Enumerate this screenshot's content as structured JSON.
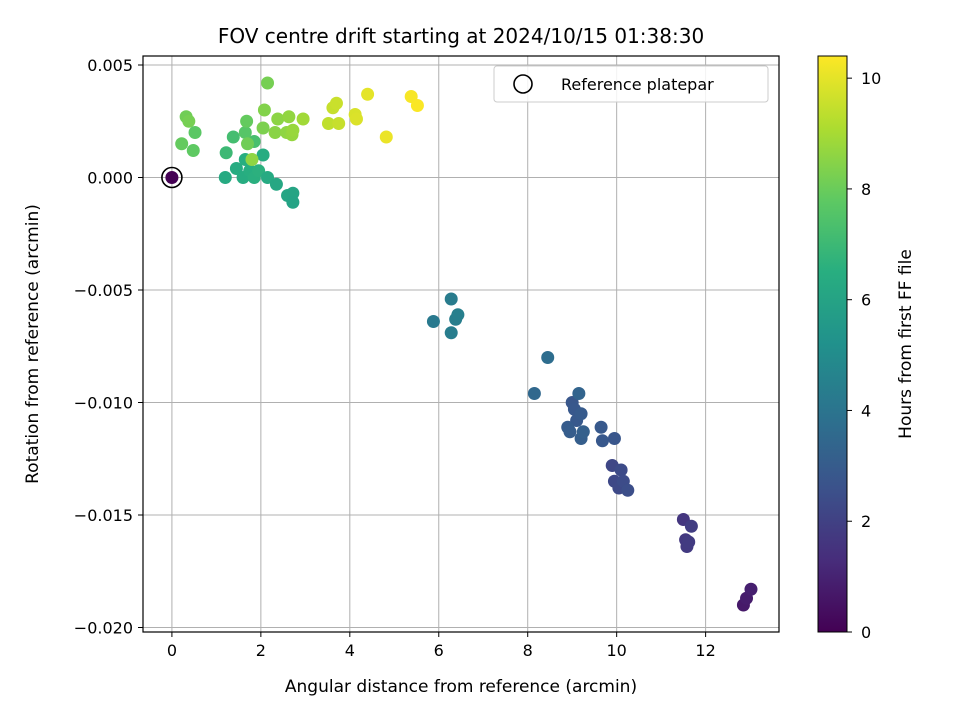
{
  "chart_data": {
    "type": "scatter",
    "title": "FOV centre drift starting at 2024/10/15 01:38:30",
    "xlabel": "Angular distance from reference (arcmin)",
    "ylabel": "Rotation from reference (arcmin)",
    "xlim": [
      -0.65,
      13.65
    ],
    "ylim": [
      -0.0202,
      0.0054
    ],
    "xticks": [
      0,
      2,
      4,
      6,
      8,
      10,
      12
    ],
    "xtick_labels": [
      "0",
      "2",
      "4",
      "6",
      "8",
      "10",
      "12"
    ],
    "yticks": [
      0.005,
      0.0,
      -0.005,
      -0.01,
      -0.015,
      -0.02
    ],
    "ytick_labels": [
      "0.005",
      "0.000",
      "−0.005",
      "−0.010",
      "−0.015",
      "−0.020"
    ],
    "grid": true,
    "legend": {
      "position": "top-right",
      "label": "Reference platepar"
    },
    "colorbar": {
      "label": "Hours from first FF file",
      "min": 0,
      "max": 10.4,
      "ticks": [
        0,
        2,
        4,
        6,
        8,
        10
      ],
      "tick_labels": [
        "0",
        "2",
        "4",
        "6",
        "8",
        "10"
      ],
      "colormap": "viridis"
    },
    "reference_point": {
      "x": 0,
      "y": 0
    },
    "points": [
      {
        "x": 0.0,
        "y": 0.0,
        "c": 0.0
      },
      {
        "x": 12.85,
        "y": -0.019,
        "c": 0.7
      },
      {
        "x": 12.92,
        "y": -0.0187,
        "c": 0.8
      },
      {
        "x": 13.02,
        "y": -0.0183,
        "c": 0.9
      },
      {
        "x": 11.5,
        "y": -0.0152,
        "c": 1.6
      },
      {
        "x": 11.55,
        "y": -0.0161,
        "c": 1.7
      },
      {
        "x": 11.58,
        "y": -0.0164,
        "c": 1.75
      },
      {
        "x": 11.62,
        "y": -0.0162,
        "c": 1.8
      },
      {
        "x": 11.68,
        "y": -0.0155,
        "c": 1.85
      },
      {
        "x": 9.9,
        "y": -0.0128,
        "c": 2.2
      },
      {
        "x": 9.95,
        "y": -0.0135,
        "c": 2.25
      },
      {
        "x": 10.05,
        "y": -0.0138,
        "c": 2.3
      },
      {
        "x": 10.1,
        "y": -0.013,
        "c": 2.35
      },
      {
        "x": 10.15,
        "y": -0.0135,
        "c": 2.4
      },
      {
        "x": 10.25,
        "y": -0.0139,
        "c": 2.45
      },
      {
        "x": 9.0,
        "y": -0.01,
        "c": 2.8
      },
      {
        "x": 9.05,
        "y": -0.0103,
        "c": 2.85
      },
      {
        "x": 9.1,
        "y": -0.0108,
        "c": 2.9
      },
      {
        "x": 9.2,
        "y": -0.0105,
        "c": 2.95
      },
      {
        "x": 8.9,
        "y": -0.0111,
        "c": 3.0
      },
      {
        "x": 8.95,
        "y": -0.0113,
        "c": 3.05
      },
      {
        "x": 9.2,
        "y": -0.0116,
        "c": 3.1
      },
      {
        "x": 9.25,
        "y": -0.0113,
        "c": 3.15
      },
      {
        "x": 9.65,
        "y": -0.0111,
        "c": 2.9
      },
      {
        "x": 9.68,
        "y": -0.0117,
        "c": 2.85
      },
      {
        "x": 9.95,
        "y": -0.0116,
        "c": 2.75
      },
      {
        "x": 9.15,
        "y": -0.0096,
        "c": 3.35
      },
      {
        "x": 8.15,
        "y": -0.0096,
        "c": 3.5
      },
      {
        "x": 8.45,
        "y": -0.008,
        "c": 3.7
      },
      {
        "x": 5.88,
        "y": -0.0064,
        "c": 4.2
      },
      {
        "x": 6.28,
        "y": -0.0054,
        "c": 4.3
      },
      {
        "x": 6.28,
        "y": -0.0069,
        "c": 4.35
      },
      {
        "x": 6.38,
        "y": -0.0063,
        "c": 4.4
      },
      {
        "x": 6.43,
        "y": -0.0061,
        "c": 4.45
      },
      {
        "x": 1.2,
        "y": 0.0,
        "c": 6.3
      },
      {
        "x": 1.45,
        "y": 0.0004,
        "c": 6.4
      },
      {
        "x": 1.6,
        "y": 0.0,
        "c": 6.4
      },
      {
        "x": 1.65,
        "y": 0.0008,
        "c": 6.5
      },
      {
        "x": 1.75,
        "y": 0.0003,
        "c": 6.5
      },
      {
        "x": 1.85,
        "y": 0.0,
        "c": 6.55
      },
      {
        "x": 1.95,
        "y": 0.0003,
        "c": 6.6
      },
      {
        "x": 2.05,
        "y": 0.001,
        "c": 6.4
      },
      {
        "x": 2.15,
        "y": 0.0,
        "c": 6.3
      },
      {
        "x": 2.35,
        "y": -0.0003,
        "c": 6.2
      },
      {
        "x": 2.6,
        "y": -0.0008,
        "c": 6.1
      },
      {
        "x": 2.72,
        "y": -0.0007,
        "c": 6.05
      },
      {
        "x": 2.72,
        "y": -0.0011,
        "c": 6.0
      },
      {
        "x": 1.22,
        "y": 0.0011,
        "c": 7.0
      },
      {
        "x": 1.38,
        "y": 0.0018,
        "c": 7.2
      },
      {
        "x": 1.85,
        "y": 0.0016,
        "c": 7.3
      },
      {
        "x": 1.65,
        "y": 0.002,
        "c": 7.6
      },
      {
        "x": 1.68,
        "y": 0.0025,
        "c": 7.9
      },
      {
        "x": 1.7,
        "y": 0.0015,
        "c": 8.1
      },
      {
        "x": 1.8,
        "y": 0.0008,
        "c": 8.6
      },
      {
        "x": 0.22,
        "y": 0.0015,
        "c": 7.9
      },
      {
        "x": 0.32,
        "y": 0.0027,
        "c": 8.1
      },
      {
        "x": 0.38,
        "y": 0.0025,
        "c": 8.2
      },
      {
        "x": 0.48,
        "y": 0.0012,
        "c": 7.8
      },
      {
        "x": 0.52,
        "y": 0.002,
        "c": 7.7
      },
      {
        "x": 2.05,
        "y": 0.0022,
        "c": 8.3
      },
      {
        "x": 2.08,
        "y": 0.003,
        "c": 8.4
      },
      {
        "x": 2.15,
        "y": 0.0042,
        "c": 8.2
      },
      {
        "x": 2.32,
        "y": 0.002,
        "c": 8.5
      },
      {
        "x": 2.38,
        "y": 0.0026,
        "c": 8.55
      },
      {
        "x": 2.58,
        "y": 0.002,
        "c": 8.6
      },
      {
        "x": 2.63,
        "y": 0.0027,
        "c": 8.65
      },
      {
        "x": 2.7,
        "y": 0.0019,
        "c": 8.7
      },
      {
        "x": 2.72,
        "y": 0.0021,
        "c": 8.75
      },
      {
        "x": 2.95,
        "y": 0.0026,
        "c": 8.9
      },
      {
        "x": 3.52,
        "y": 0.0024,
        "c": 9.4
      },
      {
        "x": 3.62,
        "y": 0.0031,
        "c": 9.5
      },
      {
        "x": 3.7,
        "y": 0.0033,
        "c": 9.55
      },
      {
        "x": 3.75,
        "y": 0.0024,
        "c": 9.5
      },
      {
        "x": 4.12,
        "y": 0.0028,
        "c": 9.8
      },
      {
        "x": 4.15,
        "y": 0.0026,
        "c": 9.85
      },
      {
        "x": 4.4,
        "y": 0.0037,
        "c": 10.0
      },
      {
        "x": 4.82,
        "y": 0.0018,
        "c": 10.1
      },
      {
        "x": 5.38,
        "y": 0.0036,
        "c": 10.3
      },
      {
        "x": 5.52,
        "y": 0.0032,
        "c": 10.35
      }
    ]
  }
}
